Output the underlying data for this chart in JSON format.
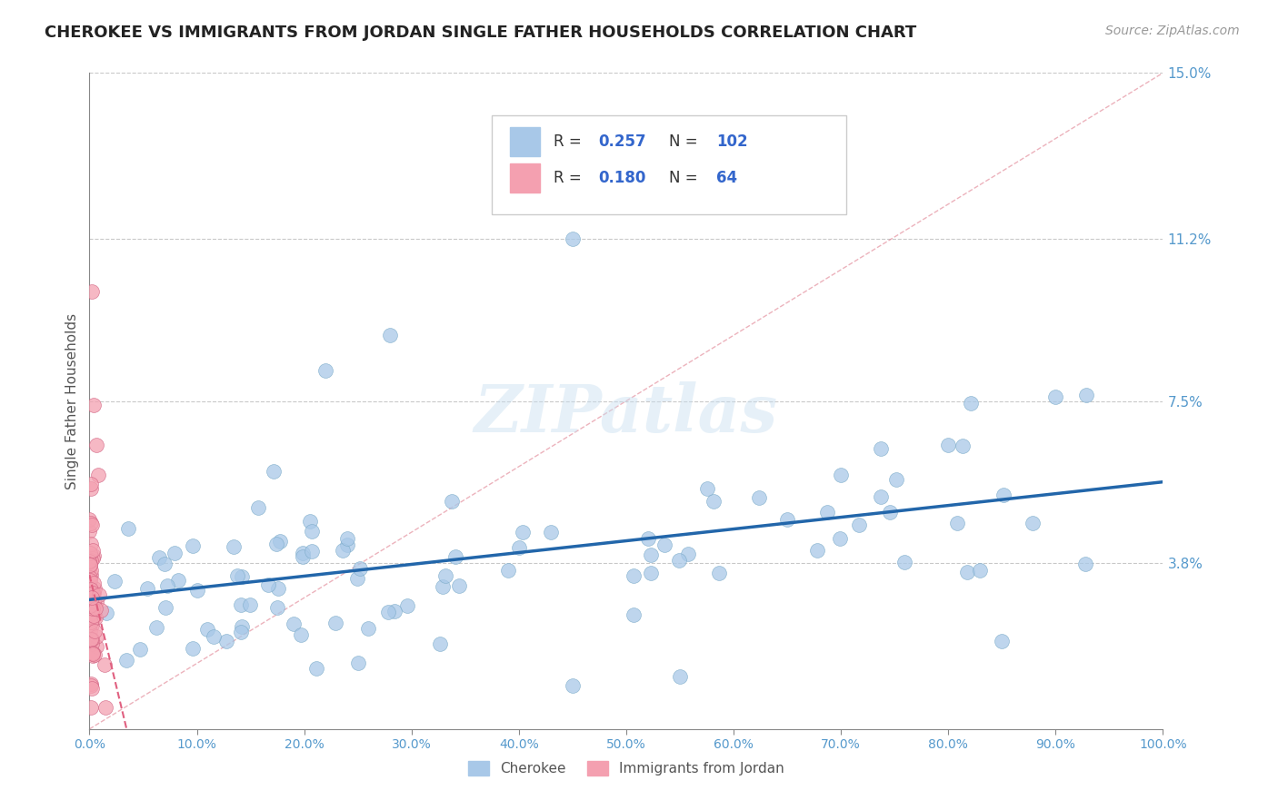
{
  "title": "CHEROKEE VS IMMIGRANTS FROM JORDAN SINGLE FATHER HOUSEHOLDS CORRELATION CHART",
  "source": "Source: ZipAtlas.com",
  "ylabel": "Single Father Households",
  "xlim": [
    0,
    1.0
  ],
  "ylim": [
    0,
    0.15
  ],
  "yticks": [
    0.038,
    0.075,
    0.112,
    0.15
  ],
  "ytick_labels": [
    "3.8%",
    "7.5%",
    "11.2%",
    "15.0%"
  ],
  "xticks": [
    0.0,
    0.1,
    0.2,
    0.3,
    0.4,
    0.5,
    0.6,
    0.7,
    0.8,
    0.9,
    1.0
  ],
  "xtick_labels": [
    "0.0%",
    "10.0%",
    "20.0%",
    "30.0%",
    "40.0%",
    "50.0%",
    "60.0%",
    "70.0%",
    "80.0%",
    "90.0%",
    "100.0%"
  ],
  "cherokee_R": 0.257,
  "cherokee_N": 102,
  "jordan_R": 0.18,
  "jordan_N": 64,
  "cherokee_color": "#a8c8e8",
  "cherokee_edge_color": "#7aaac8",
  "jordan_color": "#f4a0b0",
  "jordan_edge_color": "#d06080",
  "cherokee_line_color": "#2266aa",
  "jordan_line_color": "#e06080",
  "diag_line_color": "#e08090",
  "legend_label1": "Cherokee",
  "legend_label2": "Immigrants from Jordan",
  "watermark": "ZIPatlas",
  "background_color": "#ffffff",
  "grid_color": "#bbbbbb",
  "title_color": "#222222",
  "axis_label_color": "#555555",
  "tick_label_color": "#5599cc",
  "r_label_color": "#222222",
  "rv_color": "#3366cc",
  "nv_color": "#3366cc"
}
